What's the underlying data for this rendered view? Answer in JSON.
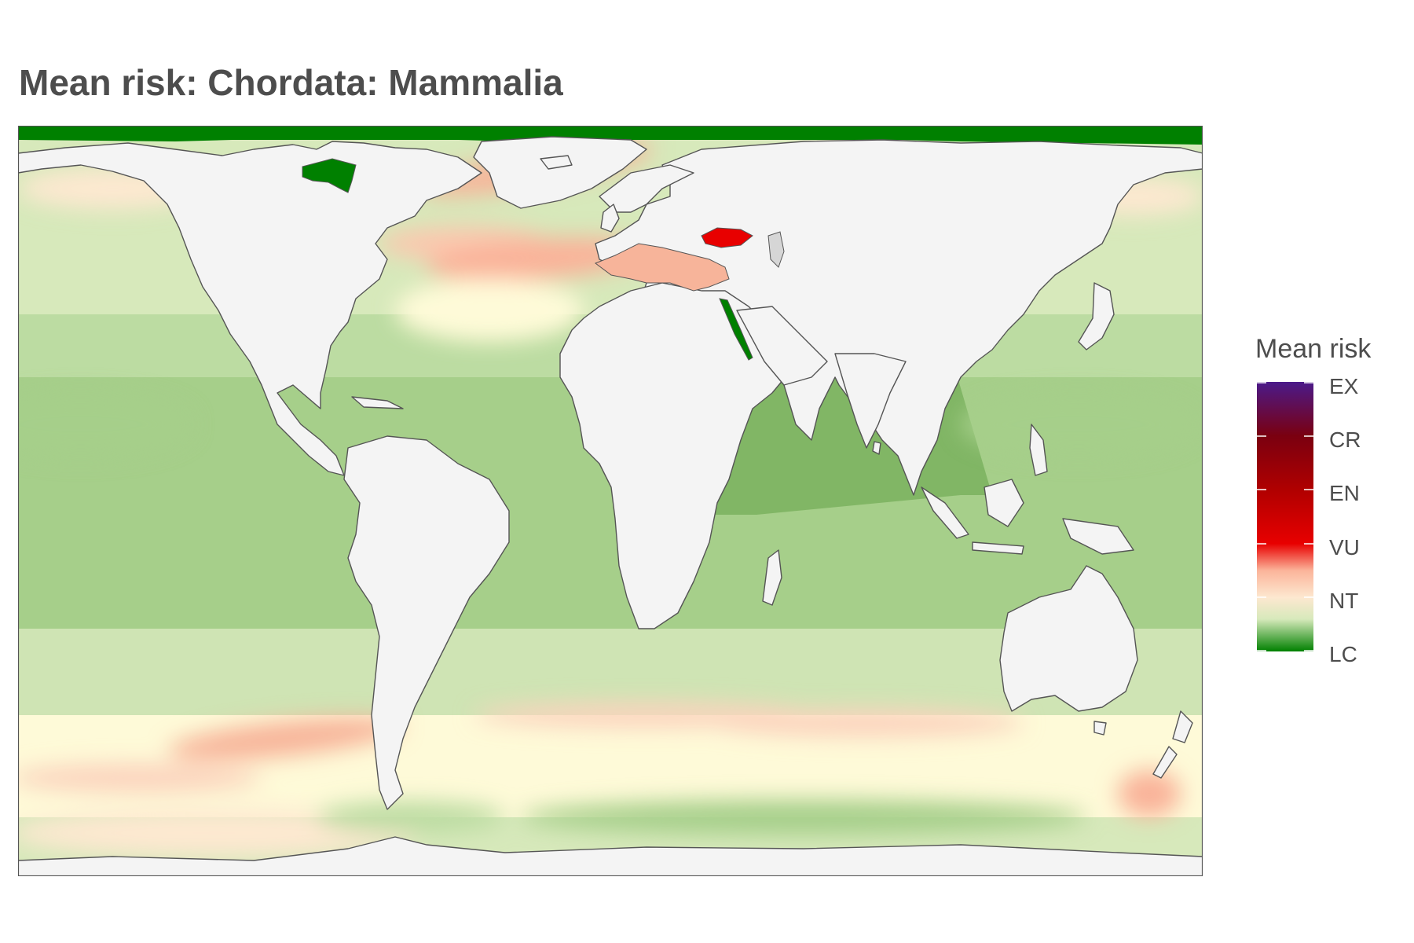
{
  "title": "Mean risk: Chordata: Mammalia",
  "legend": {
    "title": "Mean risk",
    "labels": [
      "EX",
      "CR",
      "EN",
      "VU",
      "NT",
      "LC"
    ],
    "colors": [
      "#4b1a8a",
      "#7a0010",
      "#b00000",
      "#e80000",
      "#fde8d0",
      "#008000"
    ]
  },
  "map": {
    "land_color": "#f4f4f4",
    "coast_color": "#555555",
    "risk_colors": {
      "LC": "#008000",
      "low": "#7db360",
      "mid": "#a6cf8a",
      "light": "#d7e9bb",
      "pale": "#fefad8",
      "NT": "#fde8d0",
      "warm": "#f7b49a",
      "VU": "#e80000"
    },
    "regions": [
      {
        "name": "Mediterranean Sea",
        "level": "warm"
      },
      {
        "name": "Black Sea",
        "level": "VU"
      },
      {
        "name": "Red Sea",
        "level": "LC"
      },
      {
        "name": "Hudson Bay",
        "level": "LC"
      },
      {
        "name": "Arctic Ocean",
        "level": "LC"
      },
      {
        "name": "Caspian Sea",
        "level": "none"
      }
    ]
  }
}
